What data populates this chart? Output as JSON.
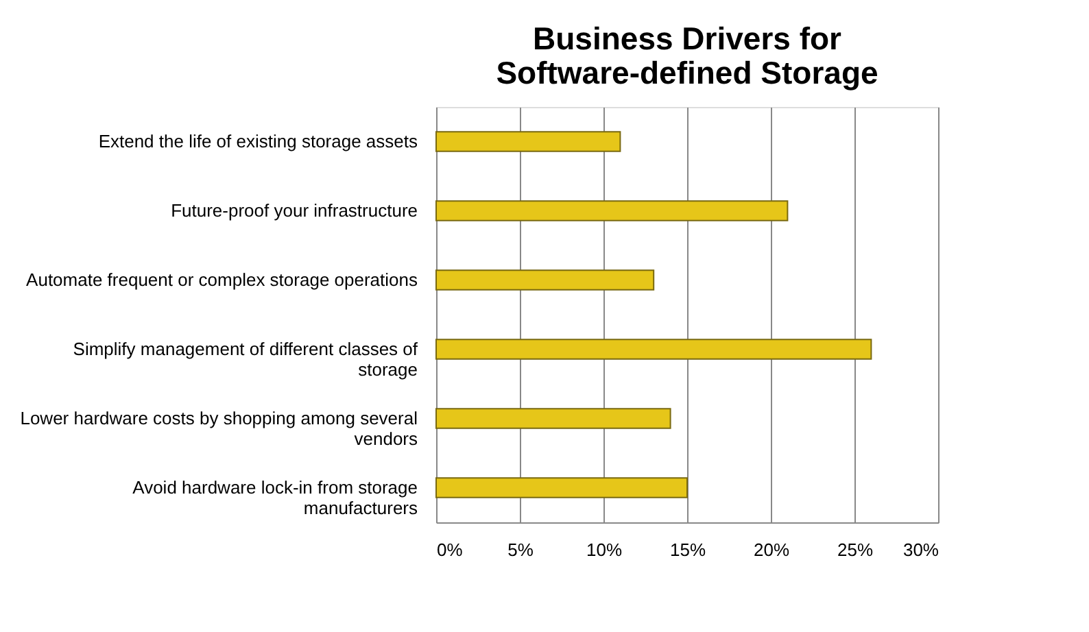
{
  "chart_data": {
    "type": "bar",
    "orientation": "horizontal",
    "title": "Business Drivers for Software-defined Storage",
    "categories": [
      "Extend the life of existing storage assets",
      "Future-proof your infrastructure",
      "Automate frequent or complex storage operations",
      "Simplify management of different classes of storage",
      "Lower hardware costs by shopping among several vendors",
      "Avoid hardware lock-in from storage manufacturers"
    ],
    "values": [
      11,
      21,
      13,
      26,
      14,
      15
    ],
    "color": "#e6c619",
    "xlim": [
      0,
      30
    ],
    "xticks": [
      {
        "value": 0,
        "label": "0%"
      },
      {
        "value": 5,
        "label": "5%"
      },
      {
        "value": 10,
        "label": "10%"
      },
      {
        "value": 15,
        "label": "15%"
      },
      {
        "value": 20,
        "label": "20%"
      },
      {
        "value": 25,
        "label": "25%"
      },
      {
        "value": 30,
        "label": "30%"
      }
    ],
    "grid": "x"
  }
}
